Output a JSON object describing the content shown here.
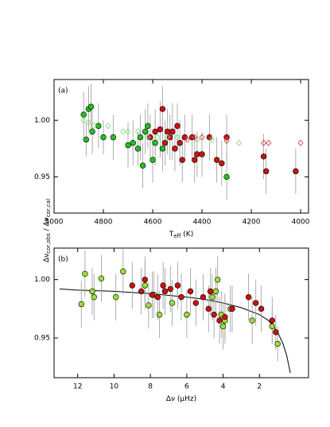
{
  "ylabel": [
    "Δν",
    "cor,obs",
    " / Δν",
    "cor,cal"
  ],
  "chart_data": [
    {
      "type": "scatter",
      "label": "(a)",
      "xlabel": [
        "T",
        "eff",
        " (K)"
      ],
      "xlim": [
        5000,
        3968
      ],
      "xticks": [
        5000,
        4800,
        4600,
        4400,
        4200,
        4000
      ],
      "ylim": [
        0.918,
        1.036
      ],
      "yticks": [
        0.95,
        {
          "value": 1,
          "label": "1.00"
        }
      ],
      "series": [
        {
          "color": "#22c022",
          "marker": "circle",
          "filled": true,
          "x": [
            4880,
            4870,
            4860,
            4850,
            4845,
            4820,
            4800,
            4760,
            4700,
            4680,
            4660,
            4650,
            4640,
            4630,
            4620,
            4600,
            4590,
            4560,
            4300
          ],
          "values": [
            1.005,
            0.983,
            1.01,
            1.012,
            0.99,
            0.995,
            0.985,
            0.985,
            0.978,
            0.98,
            0.975,
            0.985,
            0.96,
            0.99,
            0.995,
            0.965,
            0.98,
            0.975,
            0.95
          ],
          "errors": [
            0.02,
            0.015,
            0.02,
            0.02,
            0.02,
            0.02,
            0.015,
            0.02,
            0.02,
            0.02,
            0.015,
            0.02,
            0.02,
            0.02,
            0.02,
            0.02,
            0.02,
            0.02,
            0.02
          ]
        },
        {
          "color": "#cc1111",
          "marker": "circle",
          "filled": true,
          "x": [
            4610,
            4590,
            4570,
            4560,
            4550,
            4540,
            4530,
            4520,
            4510,
            4500,
            4490,
            4480,
            4470,
            4440,
            4430,
            4420,
            4400,
            4370,
            4340,
            4320,
            4300,
            4150,
            4140,
            4020
          ],
          "values": [
            0.985,
            0.99,
            0.992,
            1.01,
            0.98,
            0.99,
            0.985,
            0.99,
            0.975,
            0.995,
            0.98,
            0.965,
            0.985,
            0.985,
            0.965,
            0.97,
            0.97,
            0.985,
            0.965,
            0.962,
            0.985,
            0.968,
            0.955,
            0.955
          ],
          "errors": [
            0.02,
            0.02,
            0.025,
            0.02,
            0.02,
            0.02,
            0.02,
            0.025,
            0.02,
            0.02,
            0.02,
            0.02,
            0.02,
            0.02,
            0.02,
            0.02,
            0.02,
            0.02,
            0.02,
            0.02,
            0.02,
            0.02,
            0.02,
            0.02
          ]
        },
        {
          "color": "#88dd88",
          "marker": "diamond",
          "filled": false,
          "x": [
            4880,
            4860,
            4840,
            4780,
            4720,
            4700,
            4660,
            4620,
            4580,
            4540,
            4500,
            4420,
            4360,
            4300,
            4250
          ],
          "values": [
            1.0,
            0.998,
            0.995,
            0.995,
            0.99,
            0.99,
            0.99,
            0.985,
            0.985,
            0.985,
            0.985,
            0.983,
            0.983,
            0.982,
            0.98
          ]
        },
        {
          "color": "#dd4444",
          "marker": "diamond",
          "filled": false,
          "x": [
            4460,
            4430,
            4400,
            4300,
            4150,
            4130,
            4000
          ],
          "values": [
            0.983,
            0.985,
            0.985,
            0.982,
            0.98,
            0.98,
            0.98
          ]
        }
      ]
    },
    {
      "type": "scatter",
      "label": "(b)",
      "xlabel": [
        "Δν (μHz)"
      ],
      "xlim": [
        13.3,
        -0.7
      ],
      "xticks": [
        12,
        10,
        8,
        6,
        4,
        2
      ],
      "ylim": [
        0.916,
        1.027
      ],
      "yticks": [
        0.95,
        {
          "value": 1,
          "label": "1.00"
        }
      ],
      "series": [
        {
          "color": "#99e033",
          "marker": "circle",
          "filled": true,
          "x": [
            11.8,
            11.6,
            11.2,
            11.1,
            10.7,
            9.9,
            9.5,
            8.3,
            8.1,
            7.8,
            7.5,
            6.8,
            6.0,
            4.6,
            4.4,
            4.3,
            4.1,
            4.0,
            3.9,
            3.6,
            2.4,
            1.3,
            1.0
          ],
          "values": [
            0.979,
            1.005,
            0.99,
            0.985,
            1.001,
            0.985,
            1.007,
            0.995,
            0.978,
            0.987,
            0.97,
            0.98,
            0.97,
            0.985,
            0.99,
            1.0,
            0.97,
            0.96,
            0.965,
            0.975,
            0.965,
            0.96,
            0.945
          ],
          "errors": [
            0.02,
            0.02,
            0.02,
            0.02,
            0.02,
            0.02,
            0.02,
            0.02,
            0.02,
            0.02,
            0.02,
            0.02,
            0.02,
            0.02,
            0.02,
            0.02,
            0.02,
            0.02,
            0.02,
            0.02,
            0.02,
            0.015,
            0.015
          ]
        },
        {
          "color": "#cc1111",
          "marker": "circle",
          "filled": true,
          "x": [
            9.0,
            8.5,
            8.3,
            7.9,
            7.6,
            7.3,
            7.2,
            6.9,
            6.5,
            6.3,
            5.8,
            5.5,
            5.1,
            4.8,
            4.7,
            4.5,
            4.2,
            3.9,
            3.5,
            2.6,
            2.2,
            1.9,
            1.3,
            1.1
          ],
          "values": [
            0.995,
            0.99,
            1.0,
            0.987,
            0.985,
            0.995,
            0.99,
            0.992,
            0.995,
            0.985,
            0.99,
            0.98,
            0.985,
            0.975,
            0.99,
            0.97,
            0.965,
            0.968,
            0.975,
            0.985,
            0.98,
            0.975,
            0.965,
            0.955
          ],
          "errors": [
            0.02,
            0.02,
            0.02,
            0.02,
            0.02,
            0.02,
            0.02,
            0.02,
            0.02,
            0.02,
            0.02,
            0.02,
            0.02,
            0.02,
            0.02,
            0.02,
            0.02,
            0.02,
            0.02,
            0.02,
            0.02,
            0.02,
            0.02,
            0.015
          ]
        }
      ],
      "fit": {
        "color": "#000000",
        "x": [
          13,
          12,
          10,
          8,
          6,
          5,
          4,
          3,
          2,
          1.5,
          1,
          0.7,
          0.5,
          0.3
        ],
        "values": [
          0.992,
          0.991,
          0.99,
          0.988,
          0.985,
          0.983,
          0.98,
          0.976,
          0.97,
          0.965,
          0.955,
          0.945,
          0.935,
          0.92
        ]
      }
    }
  ]
}
